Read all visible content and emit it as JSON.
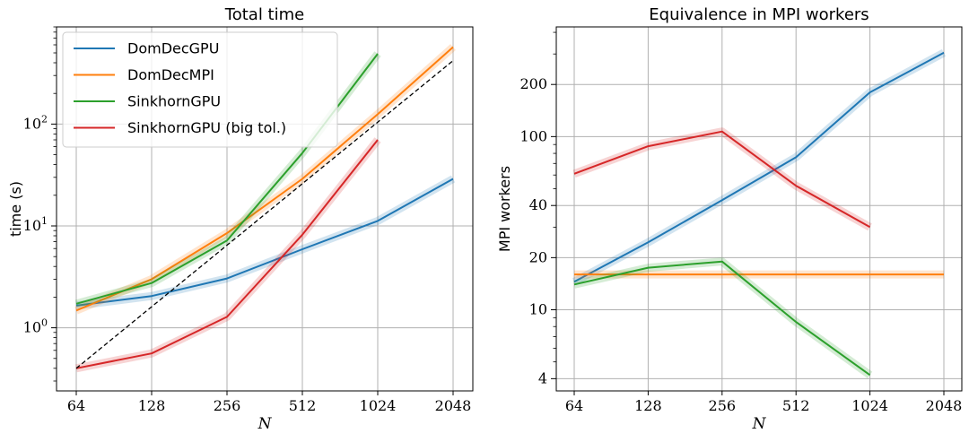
{
  "chart_data": [
    {
      "type": "line",
      "title": "Total time",
      "xlabel": "N",
      "ylabel": "time (s)",
      "xscale": "log2",
      "yscale": "log",
      "x": [
        64,
        128,
        256,
        512,
        1024,
        2048
      ],
      "x_tick_labels": [
        "64",
        "128",
        "256",
        "512",
        "1024",
        "2048"
      ],
      "ylim": [
        0.24,
        900
      ],
      "y_ticks": [
        1,
        10,
        100
      ],
      "y_tick_labels": [
        "10^0",
        "10^1",
        "10^2"
      ],
      "grid": true,
      "legend_position": "top-left",
      "series": [
        {
          "name": "DomDecGPU",
          "color": "#1f77b4",
          "x": [
            64,
            128,
            256,
            512,
            1024,
            2048
          ],
          "values": [
            1.65,
            2.05,
            3.05,
            5.9,
            11.2,
            29
          ]
        },
        {
          "name": "DomDecMPI",
          "color": "#ff7f0e",
          "x": [
            64,
            128,
            256,
            512,
            1024,
            2048
          ],
          "values": [
            1.48,
            3.0,
            8.5,
            29,
            125,
            570
          ]
        },
        {
          "name": "SinkhornGPU",
          "color": "#2ca02c",
          "x": [
            64,
            128,
            256,
            512,
            1024
          ],
          "values": [
            1.72,
            2.75,
            7.2,
            52,
            490
          ]
        },
        {
          "name": "SinkhornGPU (big tol.)",
          "color": "#d62728",
          "x": [
            64,
            128,
            256,
            512,
            1024
          ],
          "values": [
            0.4,
            0.56,
            1.28,
            8.2,
            70
          ]
        },
        {
          "name": "",
          "color": "#000000",
          "style": "dashed",
          "x": [
            64,
            2048
          ],
          "values": [
            0.4,
            420
          ]
        }
      ]
    },
    {
      "type": "line",
      "title": "Equivalence in MPI workers",
      "xlabel": "N",
      "ylabel": "MPI workers",
      "xscale": "log2",
      "yscale": "log",
      "x": [
        64,
        128,
        256,
        512,
        1024,
        2048
      ],
      "x_tick_labels": [
        "64",
        "128",
        "256",
        "512",
        "1024",
        "2048"
      ],
      "ylim": [
        3.4,
        430
      ],
      "y_ticks": [
        4,
        10,
        20,
        40,
        100,
        200
      ],
      "y_tick_labels": [
        "4",
        "10",
        "20",
        "40",
        "100",
        "200"
      ],
      "grid": true,
      "series": [
        {
          "name": "DomDecGPU",
          "color": "#1f77b4",
          "x": [
            64,
            128,
            256,
            512,
            1024,
            2048
          ],
          "values": [
            14.5,
            24.5,
            43,
            76,
            180,
            305
          ]
        },
        {
          "name": "DomDecMPI",
          "color": "#ff7f0e",
          "x": [
            64,
            128,
            256,
            512,
            1024,
            2048
          ],
          "values": [
            16,
            16,
            16,
            16,
            16,
            16
          ]
        },
        {
          "name": "SinkhornGPU",
          "color": "#2ca02c",
          "x": [
            64,
            128,
            256,
            512,
            1024
          ],
          "values": [
            14,
            17.5,
            19,
            8.5,
            4.2
          ]
        },
        {
          "name": "SinkhornGPU (big tol.)",
          "color": "#d62728",
          "x": [
            64,
            128,
            256,
            512,
            1024
          ],
          "values": [
            61,
            88,
            107,
            52,
            30
          ]
        }
      ]
    }
  ]
}
